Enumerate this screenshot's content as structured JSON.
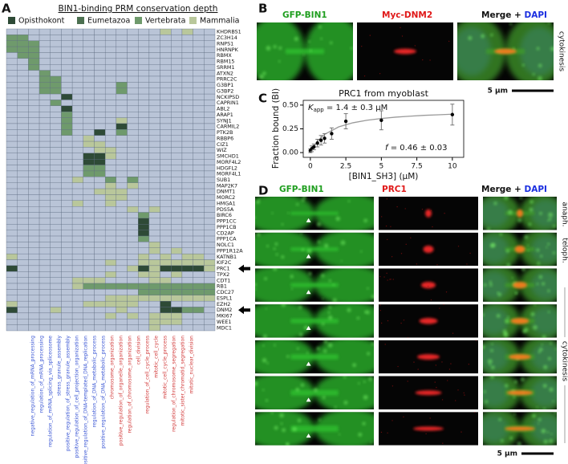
{
  "panel_a": {
    "label": "A",
    "legend_title": "BIN1-binding PRM conservation depth",
    "levels": [
      {
        "name": "Opisthokont",
        "color": "#2e4a36"
      },
      {
        "name": "Eumetazoa",
        "color": "#4c7050"
      },
      {
        "name": "Vertebrata",
        "color": "#6f9a6c"
      },
      {
        "name": "Mammalia",
        "color": "#b9c79b"
      }
    ],
    "empty_color": "#b9c4d7",
    "genes": [
      "KHDRBS1",
      "ZC3H14",
      "RNPS1",
      "HNRNPK",
      "RBMX",
      "RBM15",
      "SRRM1",
      "ATXN2",
      "PRRC2C",
      "G3BP1",
      "G3BP2",
      "NCKIPSD",
      "CAPRIN1",
      "ABL2",
      "ARAP1",
      "SYNJ1",
      "CARMIL2",
      "PTK2B",
      "RBBP6",
      "CIZ1",
      "WIZ",
      "SMCHD1",
      "MORF4L2",
      "HDGFL2",
      "MORF4L1",
      "SUB1",
      "MAP2K7",
      "DNMT1",
      "MORC2",
      "HMGA1",
      "PDS5A",
      "BIRC6",
      "PPP1CC",
      "PPP1CB",
      "CD2AP",
      "PPP1CA",
      "NOLC1",
      "PPP1R12A",
      "KATNB1",
      "KIF2C",
      "PRC1",
      "TPX2",
      "CDT1",
      "RB1",
      "CDC27",
      "ESPL1",
      "EZH2",
      "DNM2",
      "MKI67",
      "WEE1",
      "MDC1"
    ],
    "terms": [
      "negative_regulation_of_mRNA_processing",
      "regulation_of_mRNA_processing",
      "regulation_of_mRNA_splicing_via_spliceosome",
      "stress_granule_assembly",
      "positive_regulation_of_stress_granule_assembly",
      "positive_regulation_of_cell_projection_organization",
      "positive_regulation_of_DNA-templated_DNA_replication",
      "regulation_of_DNA_metabolic_process",
      "positive_regulation_of_DNA_metabolic_process",
      "chromosome_organization",
      "positive_regulation_of_organelle_organization",
      "regulation_of_chromosome_organization",
      "cell_division",
      "regulation_of_cell_cycle_process",
      "mitotic_cell_cycle",
      "mitotic_cell_cycle_process",
      "regulation_of_chromosome_segregation",
      "mitotic_sister_chromatid_segregation",
      "mitotic_nuclear_division"
    ],
    "term_colors": [
      "#3a56d4",
      "#3a56d4",
      "#3a56d4",
      "#3a56d4",
      "#3a56d4",
      "#3a56d4",
      "#3a56d4",
      "#3a56d4",
      "#3a56d4",
      "#d23a3a",
      "#d23a3a",
      "#d23a3a",
      "#d23a3a",
      "#d23a3a",
      "#d23a3a",
      "#d23a3a",
      "#d23a3a",
      "#d23a3a",
      "#d23a3a"
    ],
    "cells": [
      [
        0,
        0,
        0,
        0,
        0,
        0,
        0,
        0,
        0,
        0,
        0,
        0,
        0,
        0,
        4,
        0,
        4,
        0,
        0
      ],
      [
        3,
        3,
        0,
        0,
        0,
        0,
        0,
        0,
        0,
        0,
        0,
        0,
        0,
        0,
        0,
        0,
        0,
        0,
        0
      ],
      [
        3,
        3,
        3,
        0,
        0,
        0,
        0,
        0,
        0,
        0,
        0,
        0,
        0,
        0,
        0,
        0,
        0,
        0,
        0
      ],
      [
        3,
        3,
        3,
        0,
        0,
        0,
        0,
        0,
        0,
        0,
        0,
        0,
        0,
        0,
        0,
        0,
        0,
        0,
        0
      ],
      [
        0,
        3,
        3,
        0,
        0,
        0,
        0,
        0,
        0,
        0,
        0,
        0,
        0,
        0,
        0,
        0,
        0,
        0,
        0
      ],
      [
        0,
        0,
        3,
        0,
        0,
        0,
        0,
        0,
        0,
        0,
        0,
        0,
        0,
        0,
        0,
        0,
        0,
        0,
        0
      ],
      [
        0,
        0,
        3,
        0,
        0,
        0,
        0,
        0,
        0,
        0,
        0,
        0,
        0,
        0,
        0,
        0,
        0,
        0,
        0
      ],
      [
        0,
        0,
        0,
        3,
        0,
        0,
        0,
        0,
        0,
        0,
        0,
        0,
        0,
        0,
        0,
        0,
        0,
        0,
        0
      ],
      [
        0,
        0,
        0,
        3,
        3,
        0,
        0,
        0,
        0,
        0,
        0,
        0,
        0,
        0,
        0,
        0,
        0,
        0,
        0
      ],
      [
        0,
        0,
        0,
        3,
        3,
        0,
        0,
        0,
        0,
        0,
        3,
        0,
        0,
        0,
        0,
        0,
        0,
        0,
        0
      ],
      [
        0,
        0,
        0,
        3,
        3,
        0,
        0,
        0,
        0,
        0,
        3,
        0,
        0,
        0,
        0,
        0,
        0,
        0,
        0
      ],
      [
        0,
        0,
        0,
        0,
        0,
        1,
        0,
        0,
        0,
        0,
        0,
        0,
        0,
        0,
        0,
        0,
        0,
        0,
        0
      ],
      [
        0,
        0,
        0,
        0,
        3,
        0,
        0,
        0,
        0,
        0,
        0,
        0,
        0,
        0,
        0,
        0,
        0,
        0,
        0
      ],
      [
        0,
        0,
        0,
        0,
        0,
        1,
        0,
        0,
        0,
        0,
        0,
        0,
        0,
        0,
        0,
        0,
        0,
        0,
        0
      ],
      [
        0,
        0,
        0,
        0,
        0,
        3,
        0,
        0,
        0,
        0,
        0,
        0,
        0,
        0,
        0,
        0,
        0,
        0,
        0
      ],
      [
        0,
        0,
        0,
        0,
        0,
        3,
        0,
        0,
        0,
        0,
        4,
        0,
        0,
        0,
        0,
        0,
        0,
        0,
        0
      ],
      [
        0,
        0,
        0,
        0,
        0,
        3,
        0,
        0,
        0,
        0,
        1,
        0,
        0,
        0,
        0,
        0,
        0,
        0,
        0
      ],
      [
        0,
        0,
        0,
        0,
        0,
        3,
        0,
        0,
        1,
        0,
        3,
        0,
        0,
        0,
        0,
        0,
        0,
        0,
        0
      ],
      [
        0,
        0,
        0,
        0,
        0,
        0,
        0,
        4,
        0,
        0,
        0,
        0,
        0,
        0,
        0,
        0,
        0,
        0,
        0
      ],
      [
        0,
        0,
        0,
        0,
        0,
        0,
        0,
        4,
        4,
        0,
        0,
        0,
        0,
        0,
        0,
        0,
        0,
        0,
        0
      ],
      [
        0,
        0,
        0,
        0,
        0,
        0,
        0,
        0,
        4,
        4,
        0,
        0,
        0,
        0,
        0,
        0,
        0,
        0,
        0
      ],
      [
        0,
        0,
        0,
        0,
        0,
        0,
        0,
        1,
        1,
        4,
        0,
        0,
        0,
        0,
        0,
        0,
        0,
        0,
        0
      ],
      [
        0,
        0,
        0,
        0,
        0,
        0,
        0,
        1,
        1,
        0,
        0,
        0,
        0,
        0,
        0,
        0,
        0,
        0,
        0
      ],
      [
        0,
        0,
        0,
        0,
        0,
        0,
        0,
        3,
        3,
        0,
        0,
        0,
        0,
        0,
        0,
        0,
        0,
        0,
        0
      ],
      [
        0,
        0,
        0,
        0,
        0,
        0,
        0,
        3,
        3,
        0,
        0,
        0,
        0,
        0,
        0,
        0,
        0,
        0,
        0
      ],
      [
        0,
        0,
        0,
        0,
        0,
        0,
        4,
        0,
        0,
        3,
        0,
        3,
        0,
        0,
        0,
        0,
        0,
        0,
        0
      ],
      [
        0,
        0,
        0,
        0,
        0,
        0,
        0,
        0,
        0,
        4,
        0,
        4,
        0,
        0,
        0,
        0,
        0,
        0,
        0
      ],
      [
        0,
        0,
        0,
        0,
        0,
        0,
        0,
        0,
        4,
        4,
        4,
        0,
        0,
        0,
        0,
        0,
        0,
        0,
        0
      ],
      [
        0,
        0,
        0,
        0,
        0,
        0,
        0,
        0,
        0,
        4,
        4,
        0,
        0,
        0,
        0,
        0,
        0,
        0,
        0
      ],
      [
        0,
        0,
        0,
        0,
        0,
        0,
        4,
        0,
        0,
        4,
        0,
        0,
        0,
        0,
        0,
        0,
        0,
        0,
        0
      ],
      [
        0,
        0,
        0,
        0,
        0,
        0,
        0,
        0,
        0,
        0,
        0,
        4,
        0,
        4,
        0,
        0,
        0,
        0,
        0
      ],
      [
        0,
        0,
        0,
        0,
        0,
        0,
        0,
        0,
        0,
        0,
        0,
        0,
        3,
        0,
        0,
        0,
        0,
        0,
        0
      ],
      [
        0,
        0,
        0,
        0,
        0,
        0,
        0,
        0,
        0,
        0,
        0,
        0,
        1,
        0,
        0,
        0,
        0,
        0,
        0
      ],
      [
        0,
        0,
        0,
        0,
        0,
        0,
        0,
        0,
        0,
        0,
        0,
        0,
        1,
        0,
        0,
        0,
        0,
        0,
        0
      ],
      [
        0,
        0,
        0,
        0,
        0,
        0,
        0,
        0,
        0,
        0,
        0,
        0,
        1,
        0,
        0,
        0,
        0,
        0,
        0
      ],
      [
        0,
        0,
        0,
        0,
        0,
        0,
        0,
        0,
        0,
        0,
        0,
        0,
        3,
        0,
        0,
        0,
        0,
        0,
        0
      ],
      [
        0,
        0,
        0,
        0,
        0,
        0,
        0,
        0,
        0,
        0,
        0,
        0,
        0,
        4,
        0,
        0,
        0,
        0,
        0
      ],
      [
        0,
        0,
        0,
        0,
        0,
        0,
        0,
        0,
        0,
        0,
        0,
        0,
        0,
        4,
        0,
        4,
        0,
        0,
        0
      ],
      [
        4,
        0,
        0,
        0,
        0,
        0,
        0,
        0,
        0,
        0,
        0,
        0,
        4,
        0,
        4,
        0,
        4,
        4,
        0
      ],
      [
        0,
        0,
        0,
        0,
        0,
        0,
        0,
        0,
        0,
        4,
        0,
        0,
        4,
        4,
        4,
        4,
        4,
        4,
        4
      ],
      [
        1,
        0,
        0,
        0,
        0,
        0,
        0,
        0,
        0,
        0,
        0,
        4,
        1,
        4,
        1,
        1,
        1,
        1,
        4
      ],
      [
        0,
        0,
        0,
        0,
        0,
        0,
        0,
        0,
        0,
        4,
        0,
        0,
        4,
        4,
        0,
        4,
        0,
        0,
        0
      ],
      [
        0,
        0,
        0,
        0,
        0,
        0,
        4,
        4,
        4,
        0,
        0,
        0,
        0,
        4,
        4,
        0,
        0,
        0,
        0
      ],
      [
        0,
        0,
        0,
        0,
        0,
        0,
        4,
        3,
        3,
        3,
        3,
        3,
        3,
        3,
        3,
        3,
        3,
        3,
        3
      ],
      [
        0,
        0,
        0,
        0,
        0,
        0,
        0,
        0,
        0,
        0,
        0,
        0,
        3,
        3,
        3,
        3,
        3,
        3,
        3
      ],
      [
        0,
        0,
        0,
        0,
        0,
        0,
        0,
        0,
        0,
        4,
        4,
        4,
        4,
        4,
        4,
        4,
        4,
        4,
        4
      ],
      [
        4,
        0,
        0,
        0,
        0,
        0,
        0,
        4,
        4,
        4,
        4,
        4,
        0,
        0,
        1,
        0,
        0,
        0,
        0
      ],
      [
        1,
        0,
        0,
        0,
        4,
        0,
        0,
        0,
        0,
        0,
        4,
        0,
        0,
        0,
        1,
        1,
        3,
        3,
        0
      ],
      [
        0,
        0,
        0,
        0,
        0,
        0,
        0,
        0,
        0,
        4,
        0,
        4,
        0,
        4,
        4,
        4,
        0,
        0,
        0
      ],
      [
        0,
        0,
        0,
        0,
        0,
        0,
        0,
        0,
        0,
        0,
        0,
        0,
        0,
        4,
        4,
        4,
        0,
        0,
        0
      ],
      [
        0,
        0,
        0,
        0,
        0,
        0,
        0,
        0,
        0,
        0,
        0,
        0,
        0,
        4,
        0,
        0,
        0,
        0,
        0
      ]
    ]
  },
  "panel_b": {
    "label": "B",
    "channels": [
      "GFP-BIN1",
      "Myc-DNM2"
    ],
    "merge": "Merge + ",
    "dapi": "DAPI",
    "stage": "cytokinesis",
    "scale_bar": "5 µm"
  },
  "panel_c": {
    "label": "C"
  },
  "chart_data": {
    "type": "scatter",
    "title": "PRC1 from myoblast",
    "xlabel": "[BIN1_SH3] (μM)",
    "ylabel": "Fraction bound (BI)",
    "x": [
      0,
      0.1,
      0.25,
      0.5,
      0.75,
      1,
      1.5,
      2.5,
      5,
      10
    ],
    "values": [
      0.02,
      0.04,
      0.06,
      0.1,
      0.13,
      0.15,
      0.2,
      0.33,
      0.34,
      0.4
    ],
    "errors": [
      0.02,
      0.03,
      0.03,
      0.04,
      0.05,
      0.05,
      0.06,
      0.08,
      0.1,
      0.11
    ],
    "color": "#000000",
    "fit_x": [
      0,
      0.5,
      1,
      2,
      3,
      4,
      5,
      6,
      7,
      8,
      9,
      10
    ],
    "fit_values": [
      0,
      0.121,
      0.192,
      0.271,
      0.314,
      0.341,
      0.359,
      0.373,
      0.383,
      0.392,
      0.398,
      0.404
    ],
    "fit_color": "#9a9a9a",
    "annotations": {
      "k": "K",
      "k_sub": "app",
      "k_text": " = 1.4 ± 0.3 μM",
      "f": "f",
      "f_text": " = 0.46 ± 0.03"
    },
    "xlim": [
      -0.5,
      10.8
    ],
    "ylim": [
      -0.05,
      0.55
    ],
    "xticks": [
      0,
      2.5,
      5,
      7.5,
      10
    ],
    "yticks": [
      {
        "value": 0,
        "label": "0.00"
      },
      {
        "value": 0.25,
        "label": "0.25"
      },
      {
        "value": 0.5,
        "label": "0.50"
      }
    ]
  },
  "panel_d": {
    "label": "D",
    "channels": [
      "GFP-BIN1",
      "PRC1"
    ],
    "merge": "Merge + ",
    "dapi": "DAPI",
    "stages": [
      "anaph.",
      "teloph.",
      "cytokinesis"
    ],
    "scale_bar": "5 µm"
  }
}
